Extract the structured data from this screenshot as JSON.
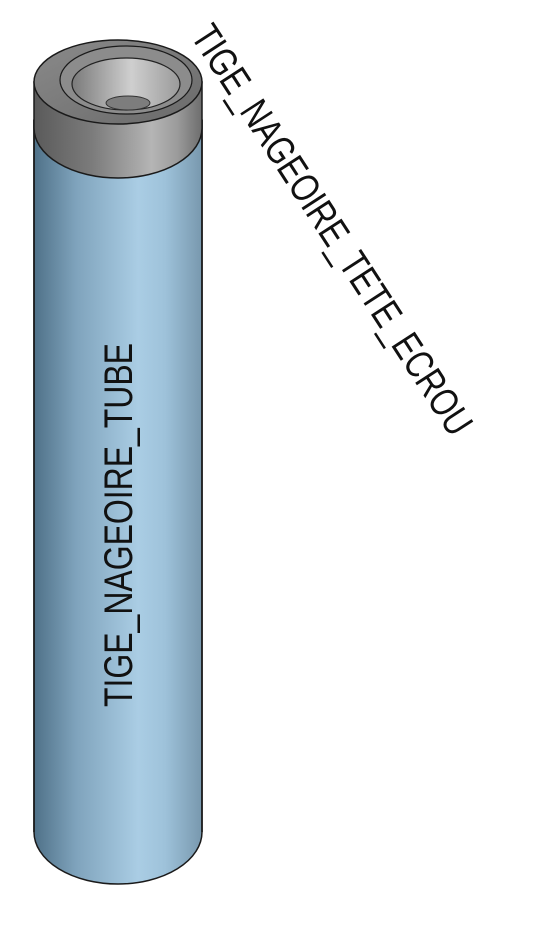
{
  "labels": {
    "tube": "TIGE_NAGEOIRE_TUBE",
    "nut": "TIGE_NAGEOIRE_TETE_ECROU"
  },
  "colors": {
    "tube_body": "#8fb3cc",
    "tube_highlight": "#b9d9ee",
    "tube_shadow": "#5e7f97",
    "nut_body": "#7a7a7a",
    "nut_top": "#9a9a9a",
    "outline": "#1a1a1a"
  }
}
